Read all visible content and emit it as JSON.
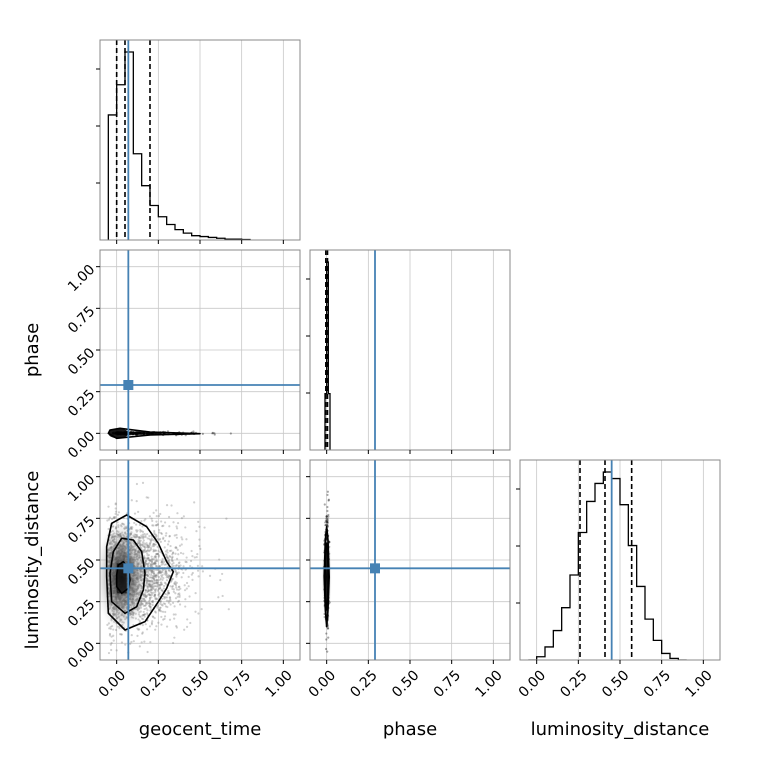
{
  "chart_data": {
    "type": "corner",
    "parameters": [
      "geocent_time",
      "phase",
      "luminosity_distance"
    ],
    "axis_labels": {
      "bottom": [
        "geocent_time",
        "phase",
        "luminosity_distance"
      ],
      "left": [
        "phase",
        "luminosity_distance"
      ]
    },
    "xlim": [
      -0.1,
      1.1
    ],
    "ylim": [
      -0.1,
      1.1
    ],
    "ticks": [
      0.0,
      0.25,
      0.5,
      0.75,
      1.0
    ],
    "tick_labels": [
      "0.00",
      "0.25",
      "0.50",
      "0.75",
      "1.00"
    ],
    "grid": true,
    "truths": {
      "geocent_time": 0.07,
      "phase": 0.29,
      "luminosity_distance": 0.45
    },
    "truth_color": "#4682b4",
    "line_color": "#000000",
    "histograms": {
      "geocent_time": {
        "bin_edges": [
          -0.05,
          0.0,
          0.05,
          0.1,
          0.15,
          0.2,
          0.25,
          0.3,
          0.35,
          0.4,
          0.45,
          0.5,
          0.55,
          0.6,
          0.65,
          0.7,
          0.75,
          0.8
        ],
        "counts": [
          145,
          180,
          218,
          100,
          63,
          40,
          27,
          18,
          12,
          8,
          5,
          4,
          3,
          2,
          1,
          1,
          0.5
        ],
        "quantiles": [
          0.0,
          0.05,
          0.2
        ]
      },
      "phase": {
        "bin_edges": [
          -0.01,
          0.0,
          0.01,
          0.02
        ],
        "counts": [
          30,
          100,
          30
        ],
        "quantiles": [
          -0.005,
          0.005
        ]
      },
      "luminosity_distance": {
        "bin_edges": [
          -0.05,
          0.0,
          0.05,
          0.1,
          0.15,
          0.2,
          0.25,
          0.3,
          0.35,
          0.4,
          0.45,
          0.5,
          0.55,
          0.6,
          0.65,
          0.7,
          0.75,
          0.8,
          0.85,
          0.9
        ],
        "counts": [
          0,
          2,
          8,
          18,
          32,
          52,
          78,
          97,
          108,
          115,
          111,
          95,
          70,
          45,
          25,
          12,
          4,
          1,
          0
        ],
        "quantiles": [
          0.26,
          0.41,
          0.57
        ]
      }
    },
    "contours_2d": {
      "geocent_time_vs_luminosity_distance": {
        "levels": [
          [
            [
              0.0,
              0.34
            ],
            [
              0.03,
              0.3
            ],
            [
              0.07,
              0.33
            ],
            [
              0.08,
              0.38
            ],
            [
              0.07,
              0.45
            ],
            [
              0.04,
              0.49
            ],
            [
              0.01,
              0.47
            ],
            [
              0.0,
              0.41
            ]
          ],
          [
            [
              -0.03,
              0.25
            ],
            [
              0.05,
              0.18
            ],
            [
              0.12,
              0.22
            ],
            [
              0.16,
              0.32
            ],
            [
              0.17,
              0.42
            ],
            [
              0.15,
              0.55
            ],
            [
              0.1,
              0.62
            ],
            [
              0.03,
              0.63
            ],
            [
              -0.02,
              0.55
            ],
            [
              -0.04,
              0.42
            ]
          ],
          [
            [
              -0.05,
              0.18
            ],
            [
              0.05,
              0.08
            ],
            [
              0.17,
              0.13
            ],
            [
              0.25,
              0.25
            ],
            [
              0.3,
              0.33
            ],
            [
              0.34,
              0.43
            ],
            [
              0.3,
              0.49
            ],
            [
              0.25,
              0.6
            ],
            [
              0.18,
              0.7
            ],
            [
              0.06,
              0.77
            ],
            [
              -0.03,
              0.72
            ],
            [
              -0.06,
              0.58
            ],
            [
              -0.06,
              0.4
            ]
          ]
        ]
      },
      "geocent_time_vs_phase": {
        "levels": [
          [
            [
              -0.05,
              0.0
            ],
            [
              0.0,
              -0.03
            ],
            [
              0.2,
              -0.01
            ],
            [
              0.5,
              -0.002
            ],
            [
              0.2,
              0.008
            ],
            [
              0.02,
              0.03
            ],
            [
              -0.04,
              0.02
            ]
          ]
        ]
      },
      "phase_vs_luminosity_distance": {
        "levels": [
          [
            [
              -0.01,
              0.4
            ],
            [
              -0.005,
              0.25
            ],
            [
              0.0,
              0.2
            ],
            [
              0.005,
              0.25
            ],
            [
              0.01,
              0.4
            ],
            [
              0.005,
              0.55
            ],
            [
              0.0,
              0.6
            ],
            [
              -0.005,
              0.55
            ]
          ],
          [
            [
              -0.015,
              0.4
            ],
            [
              -0.008,
              0.2
            ],
            [
              0.0,
              0.1
            ],
            [
              0.008,
              0.2
            ],
            [
              0.015,
              0.4
            ],
            [
              0.008,
              0.62
            ],
            [
              0.0,
              0.7
            ],
            [
              -0.008,
              0.62
            ]
          ]
        ]
      }
    }
  }
}
